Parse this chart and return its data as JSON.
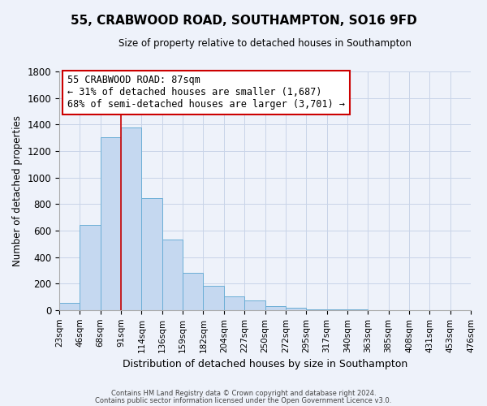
{
  "title": "55, CRABWOOD ROAD, SOUTHAMPTON, SO16 9FD",
  "subtitle": "Size of property relative to detached houses in Southampton",
  "xlabel": "Distribution of detached houses by size in Southampton",
  "ylabel": "Number of detached properties",
  "bar_values": [
    55,
    645,
    1305,
    1375,
    845,
    530,
    280,
    185,
    105,
    70,
    30,
    15,
    8,
    3,
    2,
    0,
    0,
    0,
    0,
    0
  ],
  "bin_labels": [
    "23sqm",
    "46sqm",
    "68sqm",
    "91sqm",
    "114sqm",
    "136sqm",
    "159sqm",
    "182sqm",
    "204sqm",
    "227sqm",
    "250sqm",
    "272sqm",
    "295sqm",
    "317sqm",
    "340sqm",
    "363sqm",
    "385sqm",
    "408sqm",
    "431sqm",
    "453sqm",
    "476sqm"
  ],
  "bar_color": "#c5d8f0",
  "bar_edge_color": "#6baed6",
  "vline_color": "#cc0000",
  "ylim": [
    0,
    1800
  ],
  "yticks": [
    0,
    200,
    400,
    600,
    800,
    1000,
    1200,
    1400,
    1600,
    1800
  ],
  "annotation_title": "55 CRABWOOD ROAD: 87sqm",
  "annotation_line1": "← 31% of detached houses are smaller (1,687)",
  "annotation_line2": "68% of semi-detached houses are larger (3,701) →",
  "annotation_box_color": "#ffffff",
  "annotation_box_edge": "#cc0000",
  "footer1": "Contains HM Land Registry data © Crown copyright and database right 2024.",
  "footer2": "Contains public sector information licensed under the Open Government Licence v3.0.",
  "bg_color": "#eef2fa",
  "grid_color": "#c8d4e8",
  "vline_bin_index": 3
}
